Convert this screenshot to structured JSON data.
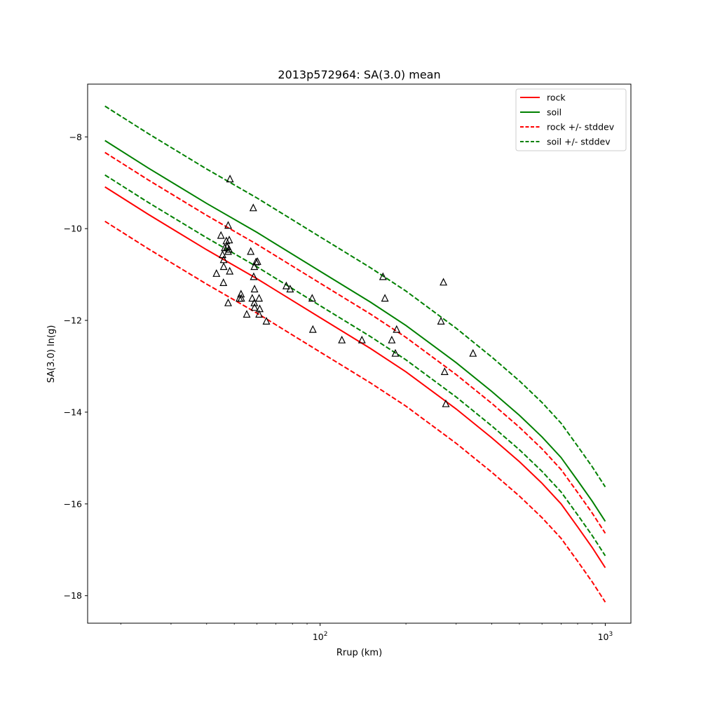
{
  "chart_data": {
    "type": "line",
    "title": "2013p572964: SA(3.0) mean",
    "xlabel": "Rrup (km)",
    "ylabel": "SA(3.0) ln(g)",
    "x_scale": "log",
    "xlim": [
      15.3,
      1230
    ],
    "ylim": [
      -18.6,
      -6.85
    ],
    "grid": false,
    "legend_position": "upper right",
    "x_ticks": [
      {
        "value": 100,
        "base": "10",
        "exp": "2"
      },
      {
        "value": 1000,
        "base": "10",
        "exp": "3"
      }
    ],
    "y_ticks": [
      {
        "value": -8,
        "label": "−8"
      },
      {
        "value": -10,
        "label": "−10"
      },
      {
        "value": -12,
        "label": "−12"
      },
      {
        "value": -14,
        "label": "−14"
      },
      {
        "value": -16,
        "label": "−16"
      },
      {
        "value": -18,
        "label": "−18"
      }
    ],
    "x": [
      17.6,
      25,
      40,
      60,
      100,
      150,
      200,
      300,
      400,
      500,
      600,
      700,
      800,
      900,
      1000
    ],
    "series": [
      {
        "name": "rock",
        "color": "#ff0000",
        "dash": false,
        "values": [
          -9.09,
          -9.69,
          -10.46,
          -11.09,
          -11.94,
          -12.61,
          -13.12,
          -13.93,
          -14.56,
          -15.08,
          -15.55,
          -16.0,
          -16.5,
          -16.95,
          -17.39
        ]
      },
      {
        "name": "soil",
        "color": "#008000",
        "dash": false,
        "values": [
          -8.08,
          -8.68,
          -9.45,
          -10.08,
          -10.93,
          -11.6,
          -12.11,
          -12.92,
          -13.55,
          -14.07,
          -14.54,
          -14.99,
          -15.49,
          -15.94,
          -16.38
        ]
      },
      {
        "name": "rock +/- stddev",
        "color": "#ff0000",
        "dash": true,
        "values": [
          -8.34,
          -8.94,
          -9.71,
          -10.34,
          -11.19,
          -11.86,
          -12.37,
          -13.18,
          -13.81,
          -14.33,
          -14.8,
          -15.25,
          -15.75,
          -16.2,
          -16.64
        ]
      },
      {
        "name": "rock +/- stddev",
        "color": "#ff0000",
        "dash": true,
        "legend": false,
        "values": [
          -9.84,
          -10.44,
          -11.21,
          -11.84,
          -12.69,
          -13.36,
          -13.87,
          -14.68,
          -15.31,
          -15.83,
          -16.3,
          -16.75,
          -17.25,
          -17.7,
          -18.14
        ]
      },
      {
        "name": "soil +/- stddev",
        "color": "#008000",
        "dash": true,
        "values": [
          -7.33,
          -7.93,
          -8.7,
          -9.33,
          -10.18,
          -10.85,
          -11.36,
          -12.17,
          -12.8,
          -13.32,
          -13.79,
          -14.24,
          -14.74,
          -15.19,
          -15.63
        ]
      },
      {
        "name": "soil +/- stddev",
        "color": "#008000",
        "dash": true,
        "legend": false,
        "values": [
          -8.83,
          -9.43,
          -10.2,
          -10.83,
          -11.68,
          -12.35,
          -12.86,
          -13.67,
          -14.3,
          -14.82,
          -15.29,
          -15.74,
          -16.24,
          -16.69,
          -17.13
        ]
      }
    ],
    "observations": [
      [
        48.3,
        -8.92
      ],
      [
        58.3,
        -9.55
      ],
      [
        47.6,
        -9.93
      ],
      [
        44.9,
        -10.15
      ],
      [
        46.9,
        -10.27
      ],
      [
        48.0,
        -10.25
      ],
      [
        46.3,
        -10.42
      ],
      [
        47.2,
        -10.4
      ],
      [
        47.9,
        -10.45
      ],
      [
        45.5,
        -10.57
      ],
      [
        47.6,
        -10.5
      ],
      [
        57.1,
        -10.5
      ],
      [
        45.9,
        -10.68
      ],
      [
        59.6,
        -10.73
      ],
      [
        60.3,
        -10.72
      ],
      [
        45.9,
        -10.83
      ],
      [
        58.8,
        -10.83
      ],
      [
        48.2,
        -10.93
      ],
      [
        43.3,
        -10.98
      ],
      [
        58.5,
        -11.05
      ],
      [
        45.8,
        -11.18
      ],
      [
        76.1,
        -11.25
      ],
      [
        78.5,
        -11.32
      ],
      [
        58.9,
        -11.32
      ],
      [
        52.8,
        -11.43
      ],
      [
        52.1,
        -11.52
      ],
      [
        52.9,
        -11.52
      ],
      [
        57.8,
        -11.52
      ],
      [
        61.1,
        -11.52
      ],
      [
        93.8,
        -11.52
      ],
      [
        58.8,
        -11.62
      ],
      [
        47.6,
        -11.62
      ],
      [
        58.9,
        -11.72
      ],
      [
        61.4,
        -11.75
      ],
      [
        55.3,
        -11.87
      ],
      [
        61.1,
        -11.87
      ],
      [
        64.8,
        -12.02
      ],
      [
        94.3,
        -12.2
      ],
      [
        119.2,
        -12.43
      ],
      [
        140.2,
        -12.43
      ],
      [
        178.4,
        -12.43
      ],
      [
        185.5,
        -12.2
      ],
      [
        183.6,
        -12.72
      ],
      [
        166.1,
        -11.05
      ],
      [
        168.8,
        -11.52
      ],
      [
        270.8,
        -11.17
      ],
      [
        265.4,
        -12.02
      ],
      [
        273.3,
        -13.12
      ],
      [
        276.0,
        -13.82
      ],
      [
        343.8,
        -12.72
      ]
    ]
  },
  "legend": [
    {
      "label": "rock",
      "color": "#ff0000",
      "dash": false
    },
    {
      "label": "soil",
      "color": "#008000",
      "dash": false
    },
    {
      "label": "rock +/- stddev",
      "color": "#ff0000",
      "dash": true
    },
    {
      "label": "soil +/- stddev",
      "color": "#008000",
      "dash": true
    }
  ]
}
